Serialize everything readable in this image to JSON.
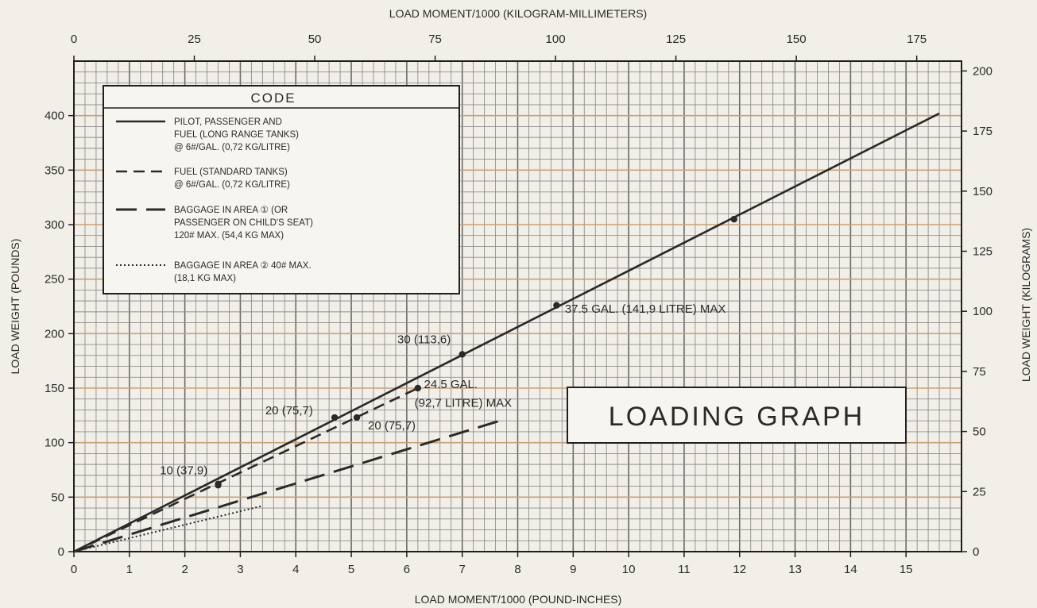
{
  "chart_data": {
    "type": "line",
    "title": "LOADING GRAPH",
    "xlabel": "LOAD MOMENT/1000 (POUND-INCHES)",
    "ylabel": "LOAD WEIGHT (POUNDS)",
    "x2label": "LOAD MOMENT/1000 (KILOGRAM-MILLIMETERS)",
    "y2label": "LOAD WEIGHT (KILOGRAMS)",
    "xlim": [
      0,
      16
    ],
    "ylim": [
      0,
      450
    ],
    "x2lim": [
      0,
      184.3
    ],
    "y2lim": [
      0,
      204.1
    ],
    "x_ticks": [
      0,
      1,
      2,
      3,
      4,
      5,
      6,
      7,
      8,
      9,
      10,
      11,
      12,
      13,
      14,
      15
    ],
    "y_ticks": [
      0,
      50,
      100,
      150,
      200,
      250,
      300,
      350,
      400
    ],
    "x2_ticks": [
      0,
      25,
      50,
      75,
      100,
      125,
      150,
      175
    ],
    "y2_ticks": [
      0,
      25,
      50,
      75,
      100,
      125,
      150,
      175,
      200
    ],
    "grid": true,
    "legend": {
      "title": "CODE",
      "placement": "top-left",
      "entries": [
        {
          "style": "solid",
          "lines": [
            "PILOT, PASSENGER AND",
            "FUEL (LONG RANGE TANKS)",
            "@ 6#/GAL. (0,72 KG/LITRE)"
          ]
        },
        {
          "style": "dash",
          "lines": [
            "FUEL (STANDARD TANKS)",
            "@ 6#/GAL. (0,72 KG/LITRE)"
          ]
        },
        {
          "style": "longdash",
          "lines": [
            "BAGGAGE IN AREA ① (OR",
            "PASSENGER ON CHILD'S SEAT)",
            "120# MAX. (54,4 KG MAX)"
          ]
        },
        {
          "style": "dotted",
          "lines": [
            "BAGGAGE IN AREA ② 40# MAX.",
            "(18,1 KG MAX)"
          ]
        }
      ]
    },
    "series": [
      {
        "style": "solid",
        "x": [
          0,
          15.6
        ],
        "y": [
          0,
          402
        ],
        "points_x": [
          2.6,
          4.7,
          7.0,
          8.7,
          11.9
        ],
        "points_y": [
          61,
          123,
          181,
          226,
          305
        ]
      },
      {
        "style": "dash",
        "x": [
          0,
          6.2
        ],
        "y": [
          0,
          150
        ],
        "points_x": [
          2.6,
          5.1,
          6.2
        ],
        "points_y": [
          62,
          123,
          150
        ]
      },
      {
        "style": "longdash",
        "x": [
          0,
          7.8
        ],
        "y": [
          0,
          122
        ]
      },
      {
        "style": "dotted",
        "x": [
          0,
          3.4
        ],
        "y": [
          0,
          42
        ]
      }
    ],
    "annotations": [
      {
        "text": "10 (37,9)",
        "x": 1.55,
        "y": 71
      },
      {
        "text": "20 (75,7)",
        "x": 3.45,
        "y": 126
      },
      {
        "text": "20 (75,7)",
        "x": 5.3,
        "y": 112
      },
      {
        "text": "30 (113,6)",
        "x": 5.83,
        "y": 191
      },
      {
        "text": "24.5 GAL.",
        "x": 6.31,
        "y": 150
      },
      {
        "text": "(92,7 LITRE) MAX",
        "x": 6.14,
        "y": 133
      },
      {
        "text": "37.5 GAL. (141,9 LITRE) MAX",
        "x": 8.85,
        "y": 219
      }
    ]
  }
}
